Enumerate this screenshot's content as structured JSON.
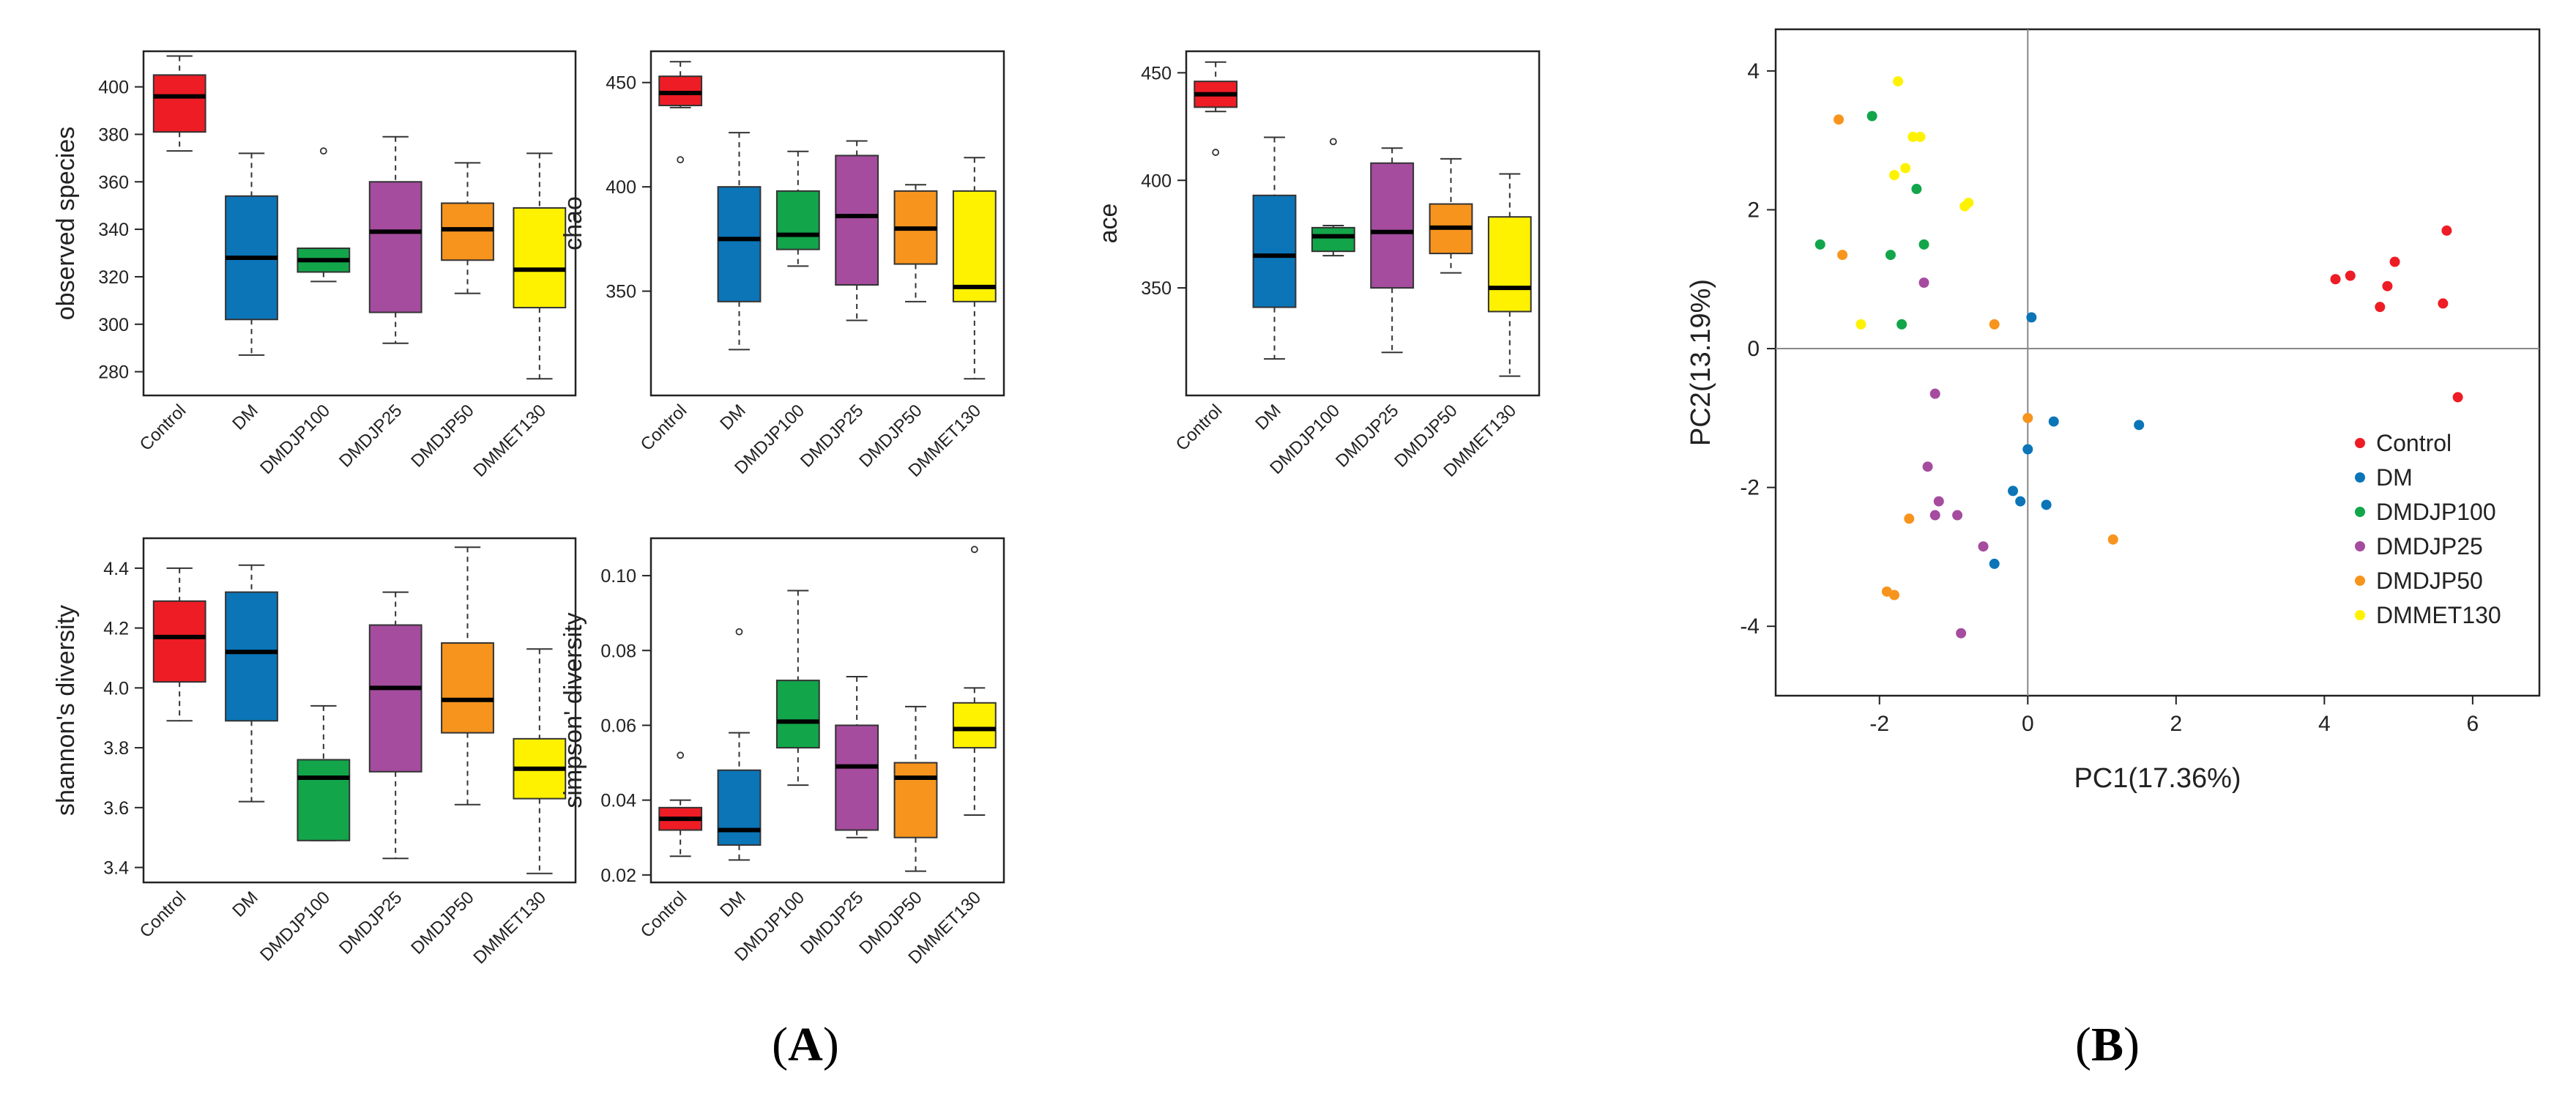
{
  "panel_labels": {
    "a": "A",
    "b": "B"
  },
  "groups": [
    "Control",
    "DM",
    "DMDJP100",
    "DMDJP25",
    "DMDJP50",
    "DMMET130"
  ],
  "colors": {
    "Control": "#ee1c25",
    "DM": "#0b75b8",
    "DMDJP100": "#12a54a",
    "DMDJP25": "#a54c9f",
    "DMDJP50": "#f7941d",
    "DMMET130": "#fff200"
  },
  "chart_data": [
    {
      "type": "boxplot",
      "id": "observed",
      "ylabel": "observed species",
      "ylim": [
        270,
        415
      ],
      "yticks": [
        280,
        300,
        320,
        340,
        360,
        380,
        400
      ],
      "categories": [
        "Control",
        "DM",
        "DMDJP100",
        "DMDJP25",
        "DMDJP50",
        "DMMET130"
      ],
      "boxes": [
        {
          "min": 373,
          "q1": 381,
          "median": 396,
          "q3": 405,
          "max": 413,
          "outliers": []
        },
        {
          "min": 287,
          "q1": 302,
          "median": 328,
          "q3": 354,
          "max": 372,
          "outliers": []
        },
        {
          "min": 318,
          "q1": 322,
          "median": 327,
          "q3": 332,
          "max": 332,
          "outliers": [
            373
          ]
        },
        {
          "min": 292,
          "q1": 305,
          "median": 339,
          "q3": 360,
          "max": 379,
          "outliers": []
        },
        {
          "min": 313,
          "q1": 327,
          "median": 340,
          "q3": 351,
          "max": 368,
          "outliers": []
        },
        {
          "min": 277,
          "q1": 307,
          "median": 323,
          "q3": 349,
          "max": 372,
          "outliers": []
        }
      ]
    },
    {
      "type": "boxplot",
      "id": "chao",
      "ylabel": "chao",
      "ylim": [
        300,
        465
      ],
      "yticks": [
        350,
        400,
        450
      ],
      "categories": [
        "Control",
        "DM",
        "DMDJP100",
        "DMDJP25",
        "DMDJP50",
        "DMMET130"
      ],
      "boxes": [
        {
          "min": 438,
          "q1": 439,
          "median": 445,
          "q3": 453,
          "max": 460,
          "outliers": [
            413
          ]
        },
        {
          "min": 322,
          "q1": 345,
          "median": 375,
          "q3": 400,
          "max": 426,
          "outliers": []
        },
        {
          "min": 362,
          "q1": 370,
          "median": 377,
          "q3": 398,
          "max": 417,
          "outliers": []
        },
        {
          "min": 336,
          "q1": 353,
          "median": 386,
          "q3": 415,
          "max": 422,
          "outliers": []
        },
        {
          "min": 345,
          "q1": 363,
          "median": 380,
          "q3": 398,
          "max": 401,
          "outliers": []
        },
        {
          "min": 308,
          "q1": 345,
          "median": 352,
          "q3": 398,
          "max": 414,
          "outliers": []
        }
      ]
    },
    {
      "type": "boxplot",
      "id": "ace",
      "ylabel": "ace",
      "ylim": [
        300,
        460
      ],
      "yticks": [
        350,
        400,
        450
      ],
      "categories": [
        "Control",
        "DM",
        "DMDJP100",
        "DMDJP25",
        "DMDJP50",
        "DMMET130"
      ],
      "boxes": [
        {
          "min": 432,
          "q1": 434,
          "median": 440,
          "q3": 446,
          "max": 455,
          "outliers": [
            413
          ]
        },
        {
          "min": 317,
          "q1": 341,
          "median": 365,
          "q3": 393,
          "max": 420,
          "outliers": []
        },
        {
          "min": 365,
          "q1": 367,
          "median": 374,
          "q3": 378,
          "max": 379,
          "outliers": [
            418
          ]
        },
        {
          "min": 320,
          "q1": 350,
          "median": 376,
          "q3": 408,
          "max": 415,
          "outliers": []
        },
        {
          "min": 357,
          "q1": 366,
          "median": 378,
          "q3": 389,
          "max": 410,
          "outliers": []
        },
        {
          "min": 309,
          "q1": 339,
          "median": 350,
          "q3": 383,
          "max": 403,
          "outliers": []
        }
      ]
    },
    {
      "type": "boxplot",
      "id": "shannon",
      "ylabel": "shannon's diversity",
      "ylim": [
        3.35,
        4.5
      ],
      "yticks": [
        3.4,
        3.6,
        3.8,
        4.0,
        4.2,
        4.4
      ],
      "tickDecimals": 1,
      "categories": [
        "Control",
        "DM",
        "DMDJP100",
        "DMDJP25",
        "DMDJP50",
        "DMMET130"
      ],
      "boxes": [
        {
          "min": 3.89,
          "q1": 4.02,
          "median": 4.17,
          "q3": 4.29,
          "max": 4.4,
          "outliers": []
        },
        {
          "min": 3.62,
          "q1": 3.89,
          "median": 4.12,
          "q3": 4.32,
          "max": 4.41,
          "outliers": []
        },
        {
          "min": 3.49,
          "q1": 3.49,
          "median": 3.7,
          "q3": 3.76,
          "max": 3.94,
          "outliers": []
        },
        {
          "min": 3.43,
          "q1": 3.72,
          "median": 4.0,
          "q3": 4.21,
          "max": 4.32,
          "outliers": []
        },
        {
          "min": 3.61,
          "q1": 3.85,
          "median": 3.96,
          "q3": 4.15,
          "max": 4.47,
          "outliers": []
        },
        {
          "min": 3.38,
          "q1": 3.63,
          "median": 3.73,
          "q3": 3.83,
          "max": 4.13,
          "outliers": []
        }
      ]
    },
    {
      "type": "boxplot",
      "id": "simpson",
      "ylabel": "simpson' diversity",
      "ylim": [
        0.018,
        0.11
      ],
      "yticks": [
        0.02,
        0.04,
        0.06,
        0.08,
        0.1
      ],
      "tickDecimals": 2,
      "categories": [
        "Control",
        "DM",
        "DMDJP100",
        "DMDJP25",
        "DMDJP50",
        "DMMET130"
      ],
      "boxes": [
        {
          "min": 0.025,
          "q1": 0.032,
          "median": 0.035,
          "q3": 0.038,
          "max": 0.04,
          "outliers": [
            0.052
          ]
        },
        {
          "min": 0.024,
          "q1": 0.028,
          "median": 0.032,
          "q3": 0.048,
          "max": 0.058,
          "outliers": [
            0.085
          ]
        },
        {
          "min": 0.044,
          "q1": 0.054,
          "median": 0.061,
          "q3": 0.072,
          "max": 0.096,
          "outliers": []
        },
        {
          "min": 0.03,
          "q1": 0.032,
          "median": 0.049,
          "q3": 0.06,
          "max": 0.073,
          "outliers": []
        },
        {
          "min": 0.021,
          "q1": 0.03,
          "median": 0.046,
          "q3": 0.05,
          "max": 0.065,
          "outliers": []
        },
        {
          "min": 0.036,
          "q1": 0.054,
          "median": 0.059,
          "q3": 0.066,
          "max": 0.07,
          "outliers": [
            0.107
          ]
        }
      ]
    },
    {
      "type": "scatter",
      "id": "pca",
      "xlabel": "PC1(17.36%)",
      "ylabel": "PC2(13.19%)",
      "xlim": [
        -3.4,
        6.9
      ],
      "ylim": [
        -5.0,
        4.6
      ],
      "xticks": [
        -2,
        0,
        2,
        4,
        6
      ],
      "yticks": [
        -4,
        -2,
        0,
        2,
        4
      ],
      "legend_position": "bottom-right",
      "series": [
        {
          "name": "Control",
          "points": [
            [
              4.15,
              1.0
            ],
            [
              4.35,
              1.05
            ],
            [
              4.75,
              0.6
            ],
            [
              4.85,
              0.9
            ],
            [
              4.95,
              1.25
            ],
            [
              5.6,
              0.65
            ],
            [
              5.65,
              1.7
            ],
            [
              5.8,
              -0.7
            ]
          ]
        },
        {
          "name": "DM",
          "points": [
            [
              0.05,
              0.45
            ],
            [
              0.35,
              -1.05
            ],
            [
              1.5,
              -1.1
            ],
            [
              0.0,
              -1.45
            ],
            [
              -0.2,
              -2.05
            ],
            [
              -0.1,
              -2.2
            ],
            [
              0.25,
              -2.25
            ],
            [
              -0.45,
              -3.1
            ]
          ]
        },
        {
          "name": "DMDJP100",
          "points": [
            [
              -2.1,
              3.35
            ],
            [
              -1.85,
              1.35
            ],
            [
              -2.8,
              1.5
            ],
            [
              -1.5,
              2.3
            ],
            [
              -1.4,
              1.5
            ],
            [
              -1.7,
              0.35
            ]
          ]
        },
        {
          "name": "DMDJP25",
          "points": [
            [
              -1.4,
              0.95
            ],
            [
              -1.25,
              -0.65
            ],
            [
              -1.35,
              -1.7
            ],
            [
              -1.2,
              -2.2
            ],
            [
              -1.25,
              -2.4
            ],
            [
              -0.95,
              -2.4
            ],
            [
              -0.6,
              -2.85
            ],
            [
              -0.9,
              -4.1
            ]
          ]
        },
        {
          "name": "DMDJP50",
          "points": [
            [
              -2.55,
              3.3
            ],
            [
              -2.5,
              1.35
            ],
            [
              -0.45,
              0.35
            ],
            [
              0.0,
              -1.0
            ],
            [
              -1.6,
              -2.45
            ],
            [
              1.15,
              -2.75
            ],
            [
              -1.9,
              -3.5
            ],
            [
              -1.8,
              -3.55
            ]
          ]
        },
        {
          "name": "DMMET130",
          "points": [
            [
              -1.75,
              3.85
            ],
            [
              -1.55,
              3.05
            ],
            [
              -1.45,
              3.05
            ],
            [
              -1.65,
              2.6
            ],
            [
              -1.8,
              2.5
            ],
            [
              -0.85,
              2.05
            ],
            [
              -0.8,
              2.1
            ],
            [
              -2.25,
              0.35
            ]
          ]
        }
      ]
    }
  ]
}
